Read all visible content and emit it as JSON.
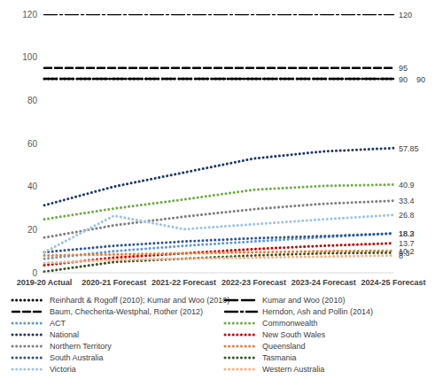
{
  "chart_data": {
    "type": "line",
    "categories": [
      "2019-20 Actual",
      "2020-21 Forecast",
      "2021-22 Forecast",
      "2022-23 Forecast",
      "2023-24 Forecast",
      "2024-25 Forecast"
    ],
    "ylim": [
      0,
      120
    ],
    "yticks": [
      0,
      20,
      40,
      60,
      80,
      100,
      120
    ],
    "grid": false,
    "data_labels": true,
    "legend": "bottom",
    "series": [
      {
        "name": "Reinhardt & Rogoff (2010); Kumar and Woo (2010)",
        "color": "#000000",
        "line_style": "dotted",
        "values": [
          90,
          90,
          90,
          90,
          90,
          90
        ]
      },
      {
        "name": "Kumar and Woo (2010)",
        "color": "#000000",
        "line_style": "long_dash",
        "values": [
          90,
          90,
          90,
          90,
          90,
          90
        ]
      },
      {
        "name": "Baum, Checherita-Westphal, Rother (2012)",
        "color": "#000000",
        "line_style": "dashed",
        "values": [
          95,
          95,
          95,
          95,
          95,
          95
        ]
      },
      {
        "name": "Herndon, Ash and Pollin (2014)",
        "color": "#000000",
        "line_style": "dash_dot",
        "values": [
          120,
          120,
          120,
          120,
          120,
          120
        ]
      },
      {
        "name": "ACT",
        "color": "#5b9bd5",
        "line_style": "dotted",
        "values": [
          6.5,
          10,
          12.5,
          14.5,
          16.5,
          18.3
        ]
      },
      {
        "name": "Commonwealth",
        "color": "#70ad47",
        "line_style": "dotted",
        "values": [
          24.8,
          29.8,
          34,
          38.5,
          40.3,
          40.9
        ]
      },
      {
        "name": "National",
        "color": "#203864",
        "line_style": "dotted",
        "values": [
          31.3,
          40,
          46.5,
          53,
          56.3,
          57.85
        ]
      },
      {
        "name": "New South Wales",
        "color": "#c00000",
        "line_style": "dotted",
        "values": [
          3.5,
          7,
          9,
          11,
          12.5,
          13.7
        ]
      },
      {
        "name": "Northern Territory",
        "color": "#7f7f7f",
        "line_style": "dotted",
        "values": [
          16.3,
          22,
          26,
          29.5,
          32,
          33.4
        ]
      },
      {
        "name": "Queensland",
        "color": "#ed7d31",
        "line_style": "dotted",
        "values": [
          8,
          8.5,
          9,
          9.5,
          10,
          10.2
        ]
      },
      {
        "name": "South Australia",
        "color": "#2f5597",
        "line_style": "dotted",
        "values": [
          9.5,
          12.5,
          14.5,
          16,
          17,
          18.2
        ]
      },
      {
        "name": "Tasmania",
        "color": "#375623",
        "line_style": "dotted",
        "values": [
          0.5,
          5,
          6.5,
          8,
          9,
          9.3
        ]
      },
      {
        "name": "Victoria",
        "color": "#9dc3e6",
        "line_style": "dotted",
        "values": [
          9.5,
          26.5,
          20.2,
          22.5,
          24.8,
          26.8
        ]
      },
      {
        "name": "Western Australia",
        "color": "#f4b183",
        "line_style": "dotted",
        "values": [
          4.5,
          6,
          6.5,
          7,
          7.5,
          8
        ]
      }
    ]
  }
}
